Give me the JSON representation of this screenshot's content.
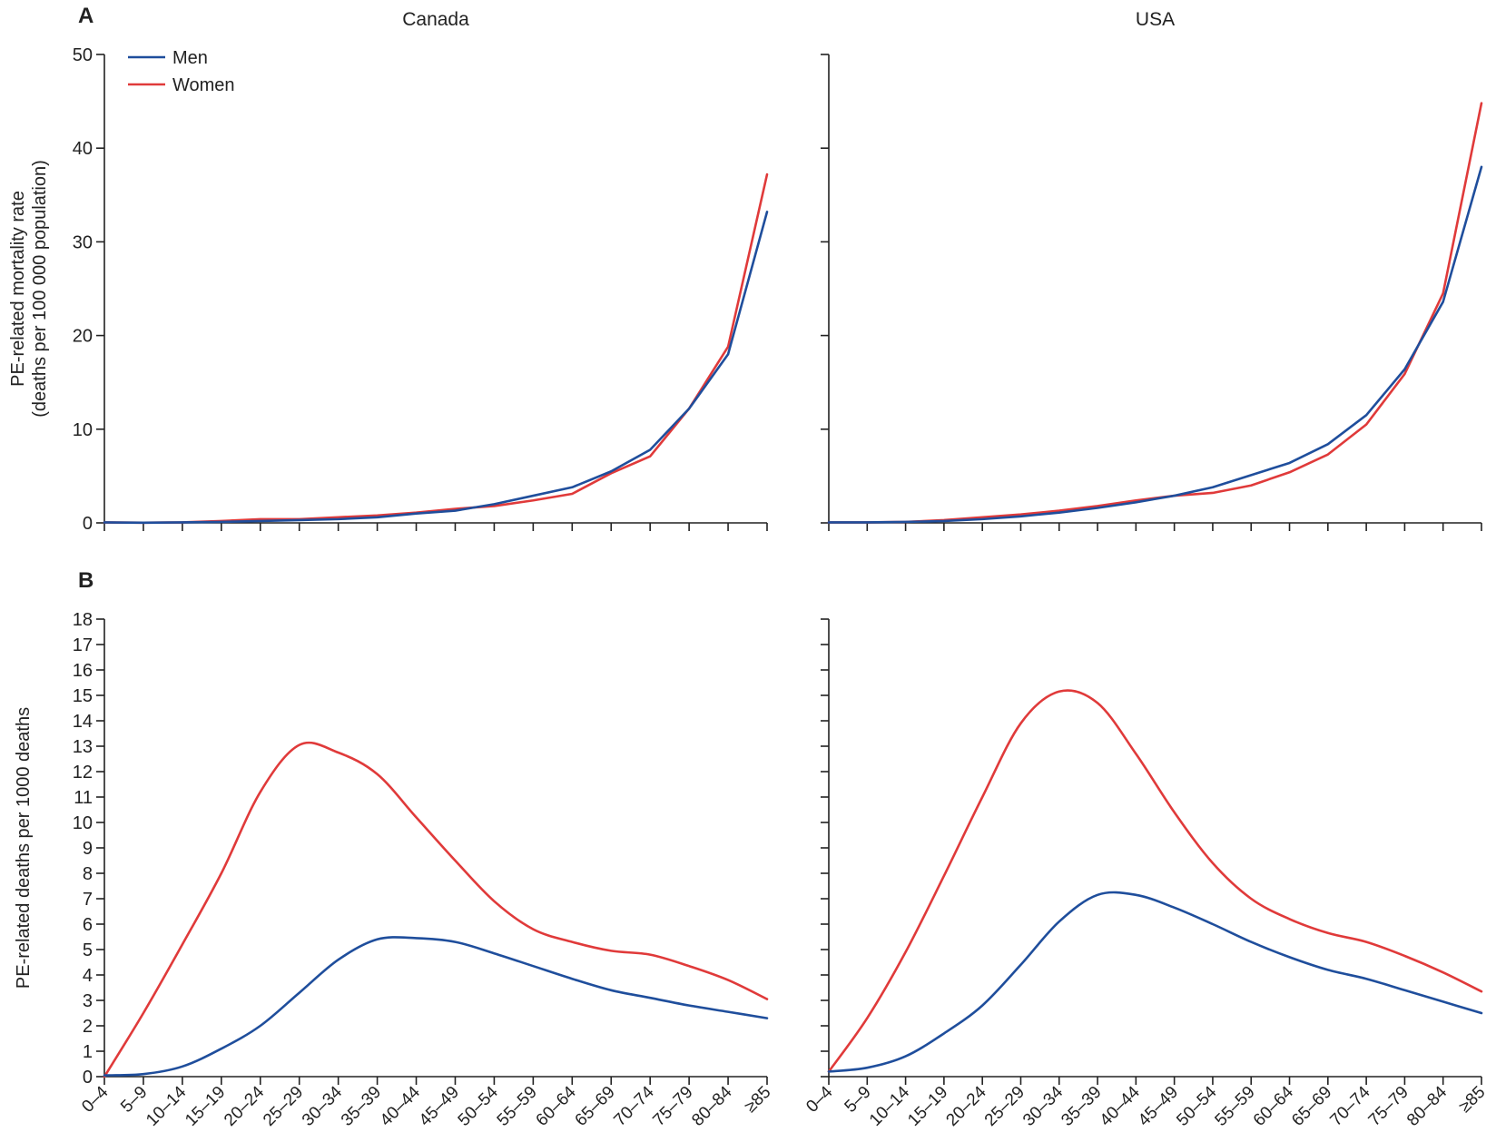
{
  "colors": {
    "men": "#1f4e9c",
    "women": "#e03a3a",
    "axis": "#222222"
  },
  "legend": [
    {
      "key": "men",
      "label": "Men"
    },
    {
      "key": "women",
      "label": "Women"
    }
  ],
  "categories": [
    "0–4",
    "5–9",
    "10–14",
    "15–19",
    "20–24",
    "25–29",
    "30–34",
    "35–39",
    "40–44",
    "45–49",
    "50–54",
    "55–59",
    "60–64",
    "65–69",
    "70–74",
    "75–79",
    "80–84",
    "≥85"
  ],
  "chart_data": [
    {
      "type": "line",
      "panel": "A",
      "title": "Canada",
      "ylabel": "PE-related mortality rate\n(deaths per 100 000 population)",
      "ylim": [
        0,
        50
      ],
      "yticks": [
        0,
        10,
        20,
        30,
        40,
        50
      ],
      "series": [
        {
          "name": "Men",
          "values": [
            0.05,
            0.02,
            0.05,
            0.1,
            0.2,
            0.3,
            0.4,
            0.6,
            1.0,
            1.3,
            2.0,
            2.9,
            3.8,
            5.5,
            7.8,
            12.2,
            18.0,
            33.2
          ]
        },
        {
          "name": "Women",
          "values": [
            0.05,
            0.02,
            0.05,
            0.2,
            0.4,
            0.4,
            0.6,
            0.8,
            1.1,
            1.5,
            1.8,
            2.4,
            3.1,
            5.3,
            7.1,
            12.2,
            18.8,
            37.2
          ]
        }
      ]
    },
    {
      "type": "line",
      "panel": "A",
      "title": "USA",
      "ylabel": "",
      "ylim": [
        0,
        50
      ],
      "yticks": [
        0,
        10,
        20,
        30,
        40,
        50
      ],
      "series": [
        {
          "name": "Men",
          "values": [
            0.05,
            0.05,
            0.1,
            0.2,
            0.4,
            0.7,
            1.1,
            1.6,
            2.2,
            2.9,
            3.8,
            5.1,
            6.4,
            8.4,
            11.5,
            16.4,
            23.6,
            38.0
          ]
        },
        {
          "name": "Women",
          "values": [
            0.05,
            0.05,
            0.1,
            0.3,
            0.6,
            0.9,
            1.3,
            1.8,
            2.4,
            2.9,
            3.2,
            4.0,
            5.4,
            7.3,
            10.5,
            15.9,
            24.5,
            44.8
          ]
        }
      ]
    },
    {
      "type": "line",
      "panel": "B",
      "title": "",
      "ylabel": "PE-related deaths per 1000 deaths",
      "ylim": [
        0,
        18
      ],
      "yticks": [
        0,
        1,
        2,
        3,
        4,
        5,
        6,
        7,
        8,
        9,
        10,
        11,
        12,
        13,
        14,
        15,
        16,
        17,
        18
      ],
      "series": [
        {
          "name": "Men",
          "values": [
            0.05,
            0.1,
            0.4,
            1.1,
            2.0,
            3.3,
            4.6,
            5.4,
            5.45,
            5.3,
            4.85,
            4.35,
            3.85,
            3.4,
            3.1,
            2.8,
            2.55,
            2.3
          ]
        },
        {
          "name": "Women",
          "values": [
            0.0,
            2.5,
            5.2,
            8.0,
            11.2,
            13.05,
            12.75,
            11.9,
            10.2,
            8.5,
            6.9,
            5.8,
            5.3,
            4.95,
            4.8,
            4.35,
            3.8,
            3.05
          ]
        }
      ]
    },
    {
      "type": "line",
      "panel": "B",
      "title": "",
      "ylabel": "",
      "ylim": [
        0,
        18
      ],
      "yticks": [
        0,
        1,
        2,
        3,
        4,
        5,
        6,
        7,
        8,
        9,
        10,
        11,
        12,
        13,
        14,
        15,
        16,
        17,
        18
      ],
      "series": [
        {
          "name": "Men",
          "values": [
            0.2,
            0.35,
            0.8,
            1.7,
            2.8,
            4.4,
            6.1,
            7.15,
            7.15,
            6.65,
            6.0,
            5.3,
            4.7,
            4.2,
            3.85,
            3.4,
            2.95,
            2.5
          ]
        },
        {
          "name": "Women",
          "values": [
            0.2,
            2.3,
            4.9,
            7.9,
            11.0,
            13.9,
            15.15,
            14.7,
            12.7,
            10.4,
            8.4,
            7.0,
            6.2,
            5.65,
            5.3,
            4.75,
            4.1,
            3.35
          ]
        }
      ]
    }
  ]
}
